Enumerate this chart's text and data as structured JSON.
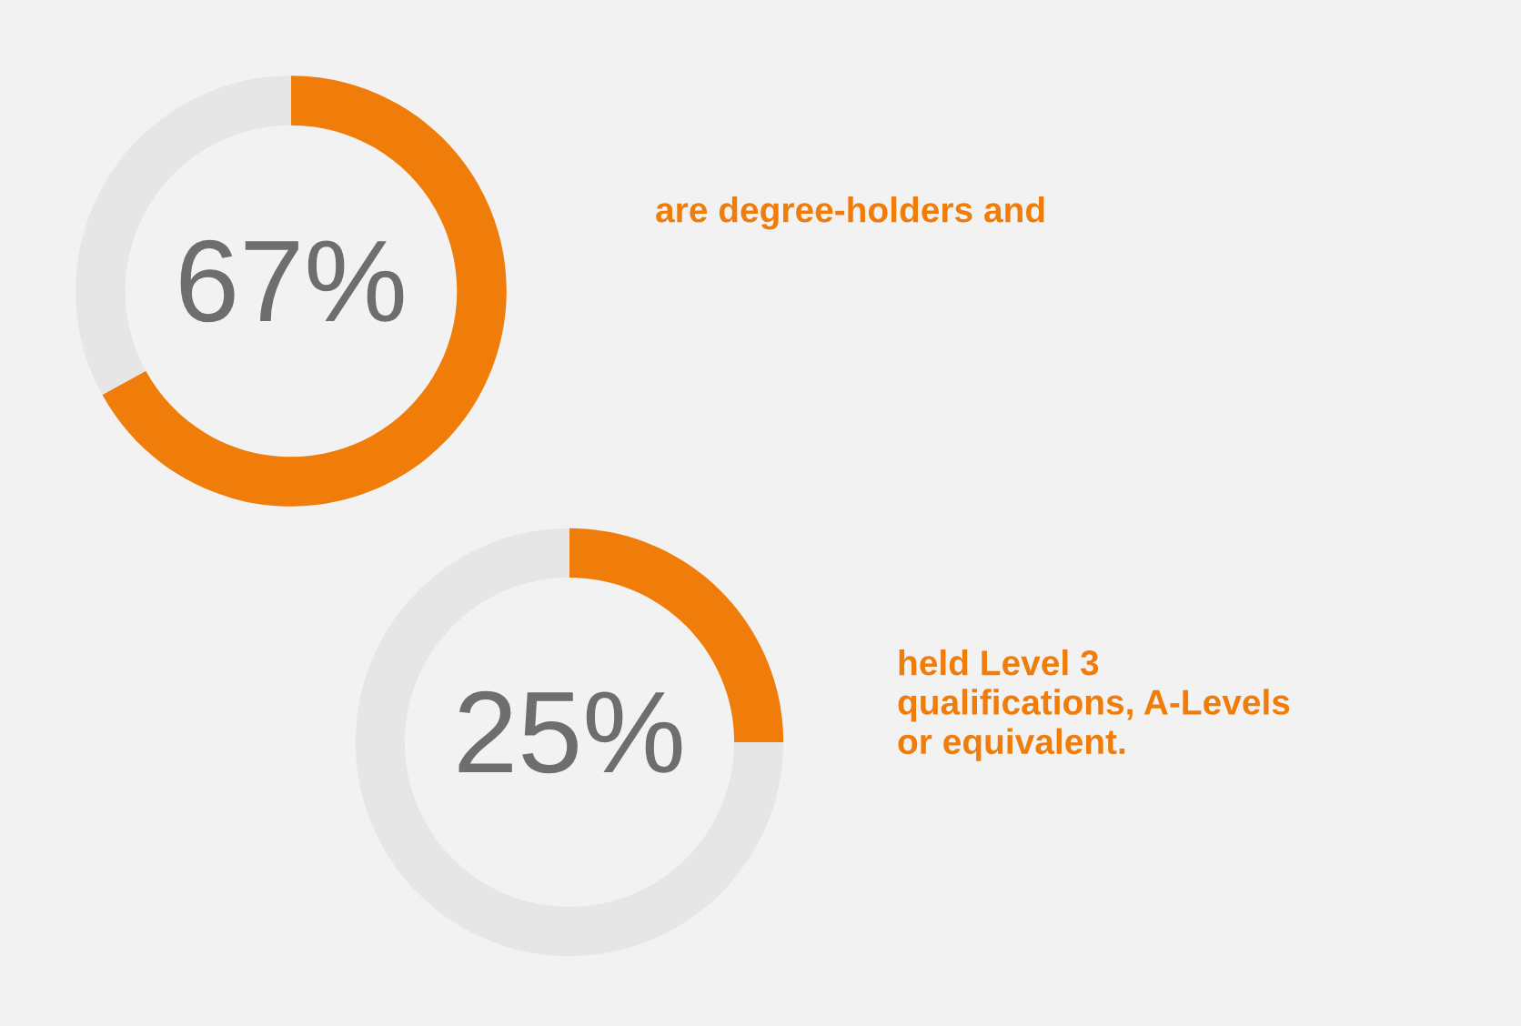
{
  "chart_data": [
    {
      "type": "donut",
      "values": [
        67,
        33
      ],
      "colors": [
        "#f07c0a",
        "#e6e6e6"
      ],
      "value_labels": [
        "67%",
        null
      ],
      "annotations": [
        "are degree-holders and"
      ]
    },
    {
      "type": "donut",
      "values": [
        25,
        75
      ],
      "colors": [
        "#f07c0a",
        "#e6e6e6"
      ],
      "value_labels": [
        "25%",
        null
      ],
      "annotations": [
        "held Level 3\nqualifications, A-Levels\nor equivalent."
      ]
    }
  ]
}
